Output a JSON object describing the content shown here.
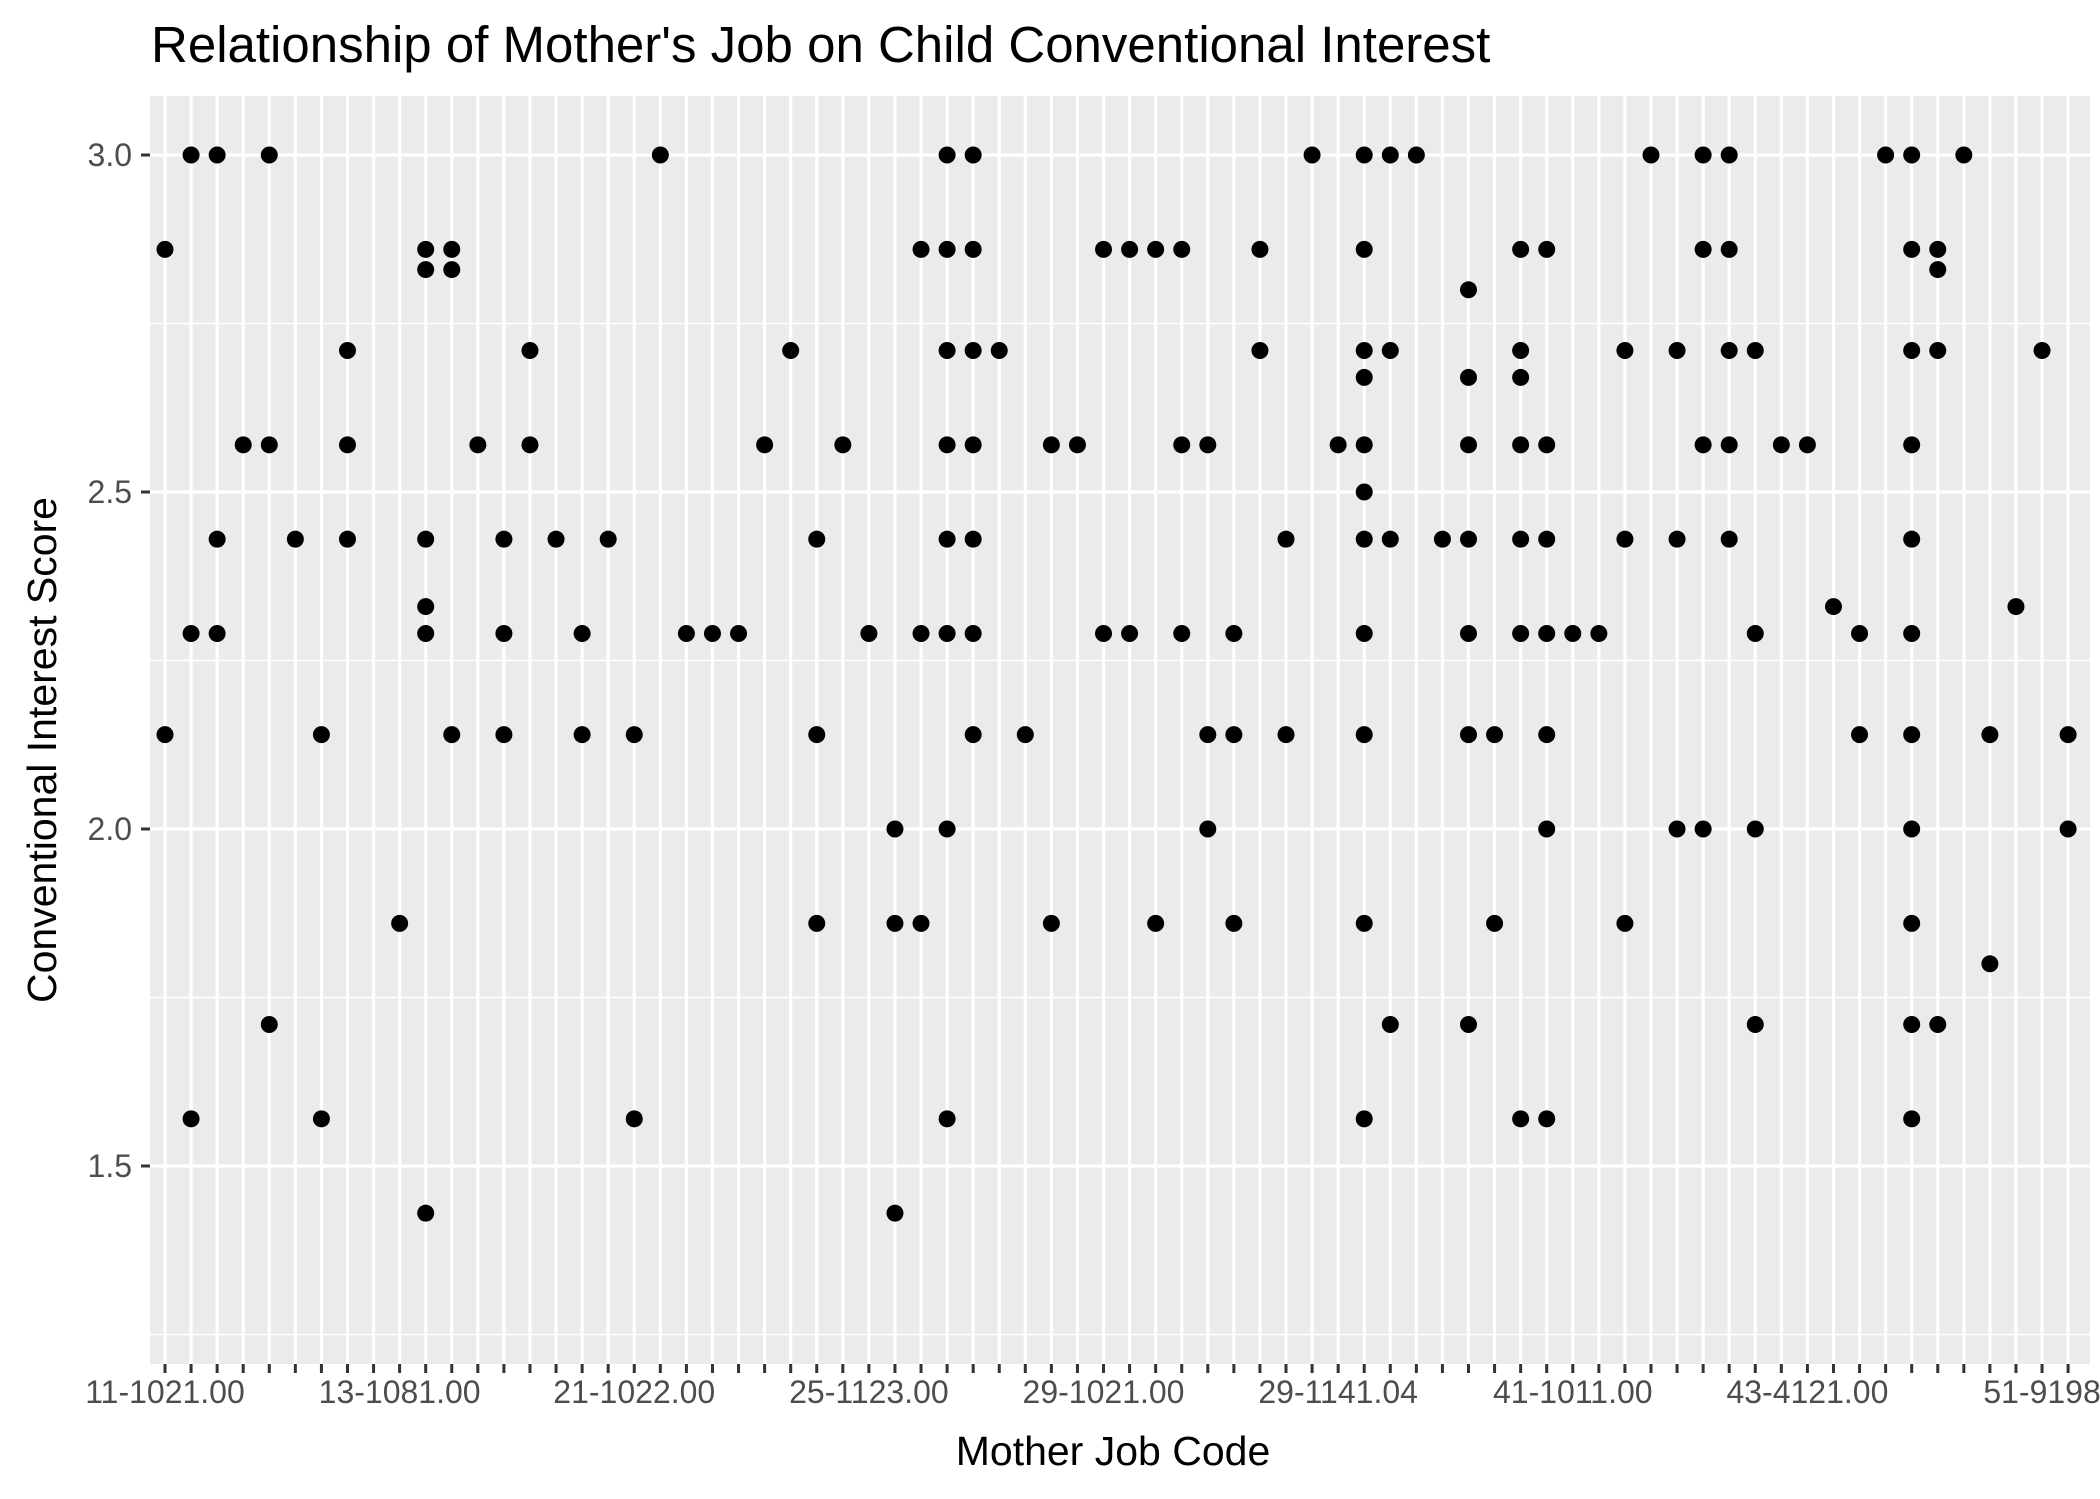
{
  "chart_data": {
    "type": "scatter",
    "title": "Relationship of Mother's Job on Child Conventional Interest",
    "xlabel": "Mother Job Code",
    "ylabel": "Conventional Interest Score",
    "x_tick_labels": [
      "11-1021.00",
      "13-1081.00",
      "21-1022.00",
      "25-1123.00",
      "29-1021.00",
      "29-1141.04",
      "41-1011.00",
      "43-4121.00",
      "51-9198"
    ],
    "x_category_count": 74,
    "x_labeled_every": 9,
    "y_ticks": [
      1.5,
      2.0,
      2.5,
      3.0
    ],
    "ylim": [
      1.25,
      3.14
    ],
    "grid": true,
    "colors": {
      "panel": "#ebebeb",
      "grid": "#ffffff",
      "point": "#000000",
      "tick_text": "#4d4d4d"
    },
    "points": [
      {
        "x": 1,
        "y": 2.86
      },
      {
        "x": 1,
        "y": 2.14
      },
      {
        "x": 2,
        "y": 3.0
      },
      {
        "x": 2,
        "y": 2.29
      },
      {
        "x": 2,
        "y": 1.57
      },
      {
        "x": 3,
        "y": 3.0
      },
      {
        "x": 3,
        "y": 2.43
      },
      {
        "x": 3,
        "y": 2.29
      },
      {
        "x": 4,
        "y": 2.57
      },
      {
        "x": 5,
        "y": 3.0
      },
      {
        "x": 5,
        "y": 2.57
      },
      {
        "x": 5,
        "y": 1.71
      },
      {
        "x": 6,
        "y": 2.43
      },
      {
        "x": 7,
        "y": 2.14
      },
      {
        "x": 7,
        "y": 1.57
      },
      {
        "x": 8,
        "y": 2.71
      },
      {
        "x": 8,
        "y": 2.57
      },
      {
        "x": 8,
        "y": 2.43
      },
      {
        "x": 10,
        "y": 1.86
      },
      {
        "x": 11,
        "y": 2.86
      },
      {
        "x": 11,
        "y": 2.83
      },
      {
        "x": 11,
        "y": 2.43
      },
      {
        "x": 11,
        "y": 2.33
      },
      {
        "x": 11,
        "y": 2.29
      },
      {
        "x": 11,
        "y": 1.43
      },
      {
        "x": 12,
        "y": 2.86
      },
      {
        "x": 12,
        "y": 2.83
      },
      {
        "x": 12,
        "y": 2.14
      },
      {
        "x": 13,
        "y": 2.57
      },
      {
        "x": 14,
        "y": 2.43
      },
      {
        "x": 14,
        "y": 2.29
      },
      {
        "x": 14,
        "y": 2.14
      },
      {
        "x": 15,
        "y": 2.71
      },
      {
        "x": 15,
        "y": 2.57
      },
      {
        "x": 16,
        "y": 2.43
      },
      {
        "x": 17,
        "y": 2.29
      },
      {
        "x": 17,
        "y": 2.14
      },
      {
        "x": 18,
        "y": 2.43
      },
      {
        "x": 19,
        "y": 2.14
      },
      {
        "x": 19,
        "y": 1.57
      },
      {
        "x": 20,
        "y": 3.0
      },
      {
        "x": 21,
        "y": 2.29
      },
      {
        "x": 22,
        "y": 2.29
      },
      {
        "x": 23,
        "y": 2.29
      },
      {
        "x": 24,
        "y": 2.57
      },
      {
        "x": 25,
        "y": 2.71
      },
      {
        "x": 26,
        "y": 2.43
      },
      {
        "x": 26,
        "y": 2.14
      },
      {
        "x": 26,
        "y": 1.86
      },
      {
        "x": 27,
        "y": 2.57
      },
      {
        "x": 28,
        "y": 2.29
      },
      {
        "x": 29,
        "y": 2.0
      },
      {
        "x": 29,
        "y": 1.86
      },
      {
        "x": 29,
        "y": 1.43
      },
      {
        "x": 30,
        "y": 2.86
      },
      {
        "x": 30,
        "y": 2.29
      },
      {
        "x": 30,
        "y": 1.86
      },
      {
        "x": 31,
        "y": 3.0
      },
      {
        "x": 31,
        "y": 2.86
      },
      {
        "x": 31,
        "y": 2.71
      },
      {
        "x": 31,
        "y": 2.57
      },
      {
        "x": 31,
        "y": 2.43
      },
      {
        "x": 31,
        "y": 2.29
      },
      {
        "x": 31,
        "y": 2.0
      },
      {
        "x": 31,
        "y": 1.57
      },
      {
        "x": 32,
        "y": 3.0
      },
      {
        "x": 32,
        "y": 2.86
      },
      {
        "x": 32,
        "y": 2.71
      },
      {
        "x": 32,
        "y": 2.57
      },
      {
        "x": 32,
        "y": 2.43
      },
      {
        "x": 32,
        "y": 2.29
      },
      {
        "x": 32,
        "y": 2.14
      },
      {
        "x": 33,
        "y": 2.71
      },
      {
        "x": 34,
        "y": 2.14
      },
      {
        "x": 35,
        "y": 2.57
      },
      {
        "x": 35,
        "y": 1.86
      },
      {
        "x": 36,
        "y": 2.57
      },
      {
        "x": 37,
        "y": 2.86
      },
      {
        "x": 37,
        "y": 2.29
      },
      {
        "x": 38,
        "y": 2.86
      },
      {
        "x": 38,
        "y": 2.29
      },
      {
        "x": 39,
        "y": 2.86
      },
      {
        "x": 39,
        "y": 1.86
      },
      {
        "x": 40,
        "y": 2.86
      },
      {
        "x": 40,
        "y": 2.57
      },
      {
        "x": 40,
        "y": 2.29
      },
      {
        "x": 41,
        "y": 2.57
      },
      {
        "x": 41,
        "y": 2.14
      },
      {
        "x": 41,
        "y": 2.0
      },
      {
        "x": 42,
        "y": 2.29
      },
      {
        "x": 42,
        "y": 2.14
      },
      {
        "x": 42,
        "y": 1.86
      },
      {
        "x": 43,
        "y": 2.86
      },
      {
        "x": 43,
        "y": 2.71
      },
      {
        "x": 44,
        "y": 2.43
      },
      {
        "x": 44,
        "y": 2.14
      },
      {
        "x": 45,
        "y": 3.0
      },
      {
        "x": 46,
        "y": 2.57
      },
      {
        "x": 47,
        "y": 3.0
      },
      {
        "x": 47,
        "y": 2.86
      },
      {
        "x": 47,
        "y": 2.71
      },
      {
        "x": 47,
        "y": 2.67
      },
      {
        "x": 47,
        "y": 2.57
      },
      {
        "x": 47,
        "y": 2.5
      },
      {
        "x": 47,
        "y": 2.43
      },
      {
        "x": 47,
        "y": 2.29
      },
      {
        "x": 47,
        "y": 2.14
      },
      {
        "x": 47,
        "y": 1.86
      },
      {
        "x": 47,
        "y": 1.57
      },
      {
        "x": 48,
        "y": 3.0
      },
      {
        "x": 48,
        "y": 2.71
      },
      {
        "x": 48,
        "y": 2.43
      },
      {
        "x": 48,
        "y": 1.71
      },
      {
        "x": 49,
        "y": 3.0
      },
      {
        "x": 50,
        "y": 2.43
      },
      {
        "x": 51,
        "y": 2.8
      },
      {
        "x": 51,
        "y": 2.67
      },
      {
        "x": 51,
        "y": 2.57
      },
      {
        "x": 51,
        "y": 2.43
      },
      {
        "x": 51,
        "y": 2.29
      },
      {
        "x": 51,
        "y": 2.14
      },
      {
        "x": 51,
        "y": 1.71
      },
      {
        "x": 52,
        "y": 2.14
      },
      {
        "x": 52,
        "y": 1.86
      },
      {
        "x": 53,
        "y": 2.86
      },
      {
        "x": 53,
        "y": 2.71
      },
      {
        "x": 53,
        "y": 2.67
      },
      {
        "x": 53,
        "y": 2.57
      },
      {
        "x": 53,
        "y": 2.43
      },
      {
        "x": 53,
        "y": 2.29
      },
      {
        "x": 53,
        "y": 1.57
      },
      {
        "x": 54,
        "y": 2.86
      },
      {
        "x": 54,
        "y": 2.57
      },
      {
        "x": 54,
        "y": 2.43
      },
      {
        "x": 54,
        "y": 2.29
      },
      {
        "x": 54,
        "y": 2.14
      },
      {
        "x": 54,
        "y": 2.0
      },
      {
        "x": 54,
        "y": 1.57
      },
      {
        "x": 55,
        "y": 2.29
      },
      {
        "x": 56,
        "y": 2.29
      },
      {
        "x": 57,
        "y": 2.71
      },
      {
        "x": 57,
        "y": 2.43
      },
      {
        "x": 57,
        "y": 1.86
      },
      {
        "x": 58,
        "y": 3.0
      },
      {
        "x": 59,
        "y": 2.71
      },
      {
        "x": 59,
        "y": 2.43
      },
      {
        "x": 59,
        "y": 2.0
      },
      {
        "x": 60,
        "y": 3.0
      },
      {
        "x": 60,
        "y": 2.86
      },
      {
        "x": 60,
        "y": 2.57
      },
      {
        "x": 60,
        "y": 2.0
      },
      {
        "x": 61,
        "y": 3.0
      },
      {
        "x": 61,
        "y": 2.86
      },
      {
        "x": 61,
        "y": 2.71
      },
      {
        "x": 61,
        "y": 2.57
      },
      {
        "x": 61,
        "y": 2.43
      },
      {
        "x": 62,
        "y": 2.71
      },
      {
        "x": 62,
        "y": 2.29
      },
      {
        "x": 62,
        "y": 2.0
      },
      {
        "x": 62,
        "y": 1.71
      },
      {
        "x": 63,
        "y": 2.57
      },
      {
        "x": 64,
        "y": 2.57
      },
      {
        "x": 65,
        "y": 2.33
      },
      {
        "x": 66,
        "y": 2.29
      },
      {
        "x": 66,
        "y": 2.14
      },
      {
        "x": 67,
        "y": 3.0
      },
      {
        "x": 68,
        "y": 3.0
      },
      {
        "x": 68,
        "y": 2.86
      },
      {
        "x": 68,
        "y": 2.71
      },
      {
        "x": 68,
        "y": 2.57
      },
      {
        "x": 68,
        "y": 2.43
      },
      {
        "x": 68,
        "y": 2.29
      },
      {
        "x": 68,
        "y": 2.14
      },
      {
        "x": 68,
        "y": 2.0
      },
      {
        "x": 68,
        "y": 1.86
      },
      {
        "x": 68,
        "y": 1.71
      },
      {
        "x": 68,
        "y": 1.57
      },
      {
        "x": 69,
        "y": 2.86
      },
      {
        "x": 69,
        "y": 2.83
      },
      {
        "x": 69,
        "y": 2.71
      },
      {
        "x": 69,
        "y": 1.71
      },
      {
        "x": 70,
        "y": 3.0
      },
      {
        "x": 71,
        "y": 2.14
      },
      {
        "x": 71,
        "y": 1.8
      },
      {
        "x": 72,
        "y": 2.33
      },
      {
        "x": 73,
        "y": 2.71
      },
      {
        "x": 74,
        "y": 2.14
      },
      {
        "x": 74,
        "y": 2.0
      }
    ]
  }
}
